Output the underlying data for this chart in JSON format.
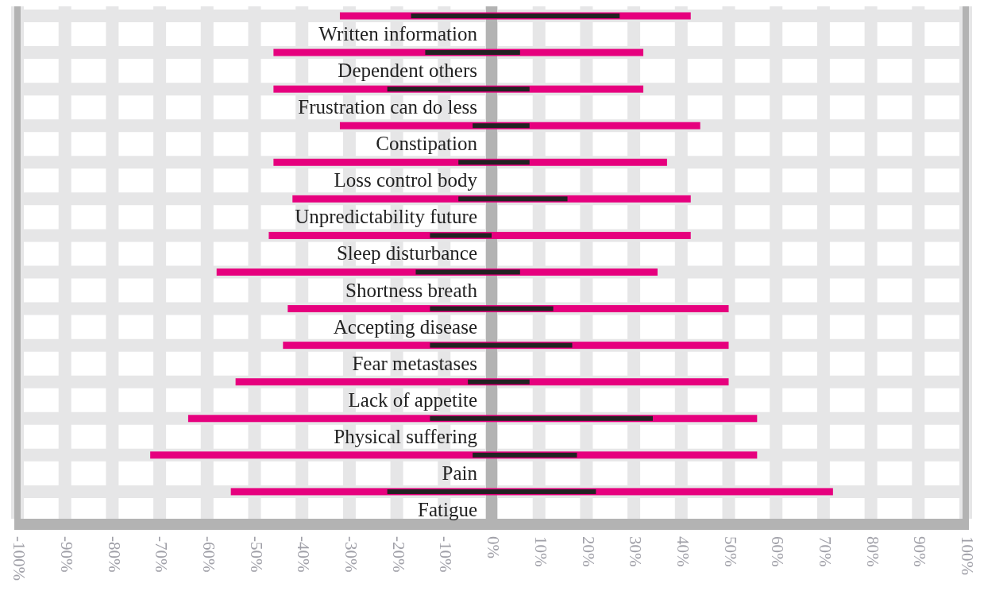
{
  "chart_data": {
    "type": "bar",
    "orientation": "horizontal",
    "categories": [
      "Written information",
      "Dependent others",
      "Frustration can do less",
      "Constipation",
      "Loss control body",
      "Unpredictability future",
      "Sleep disturbance",
      "Shortness breath",
      "Accepting disease",
      "Fear metastases",
      "Lack of appetite",
      "Physical suffering",
      "Pain",
      "Fatigue"
    ],
    "series": [
      {
        "color": "#e6007e",
        "base": [
          -32,
          -46,
          -46,
          -32,
          -46,
          -42,
          -47,
          -58,
          -43,
          -44,
          -54,
          -64,
          -72,
          -55
        ],
        "values": [
          74,
          78,
          78,
          76,
          83,
          84,
          89,
          93,
          93,
          94,
          104,
          120,
          128,
          127
        ]
      },
      {
        "color": "#222222",
        "base": [
          -17,
          -14,
          -22,
          -4,
          -7,
          -7,
          -13,
          -16,
          -13,
          -13,
          -5,
          -13,
          -4,
          -22
        ],
        "values": [
          44,
          20,
          30,
          12,
          15,
          23,
          13,
          22,
          26,
          30,
          13,
          47,
          22,
          44
        ]
      }
    ],
    "xlim": [
      -100,
      100
    ],
    "xticks": [
      {
        "value": -100,
        "label": "-100%"
      },
      {
        "value": -90,
        "label": "-90%"
      },
      {
        "value": -80,
        "label": "-80%"
      },
      {
        "value": -70,
        "label": "-70%"
      },
      {
        "value": -60,
        "label": "-60%"
      },
      {
        "value": -50,
        "label": "-50%"
      },
      {
        "value": -40,
        "label": "-40%"
      },
      {
        "value": -30,
        "label": "-30%"
      },
      {
        "value": -20,
        "label": "-20%"
      },
      {
        "value": -10,
        "label": "-10%"
      },
      {
        "value": 0,
        "label": "0%"
      },
      {
        "value": 10,
        "label": "10%"
      },
      {
        "value": 20,
        "label": "20%"
      },
      {
        "value": 30,
        "label": "30%"
      },
      {
        "value": 40,
        "label": "40%"
      },
      {
        "value": 50,
        "label": "50%"
      },
      {
        "value": 60,
        "label": "60%"
      },
      {
        "value": 70,
        "label": "70%"
      },
      {
        "value": 80,
        "label": "80%"
      },
      {
        "value": 90,
        "label": "90%"
      },
      {
        "value": 100,
        "label": "100%"
      }
    ],
    "grid": true
  }
}
